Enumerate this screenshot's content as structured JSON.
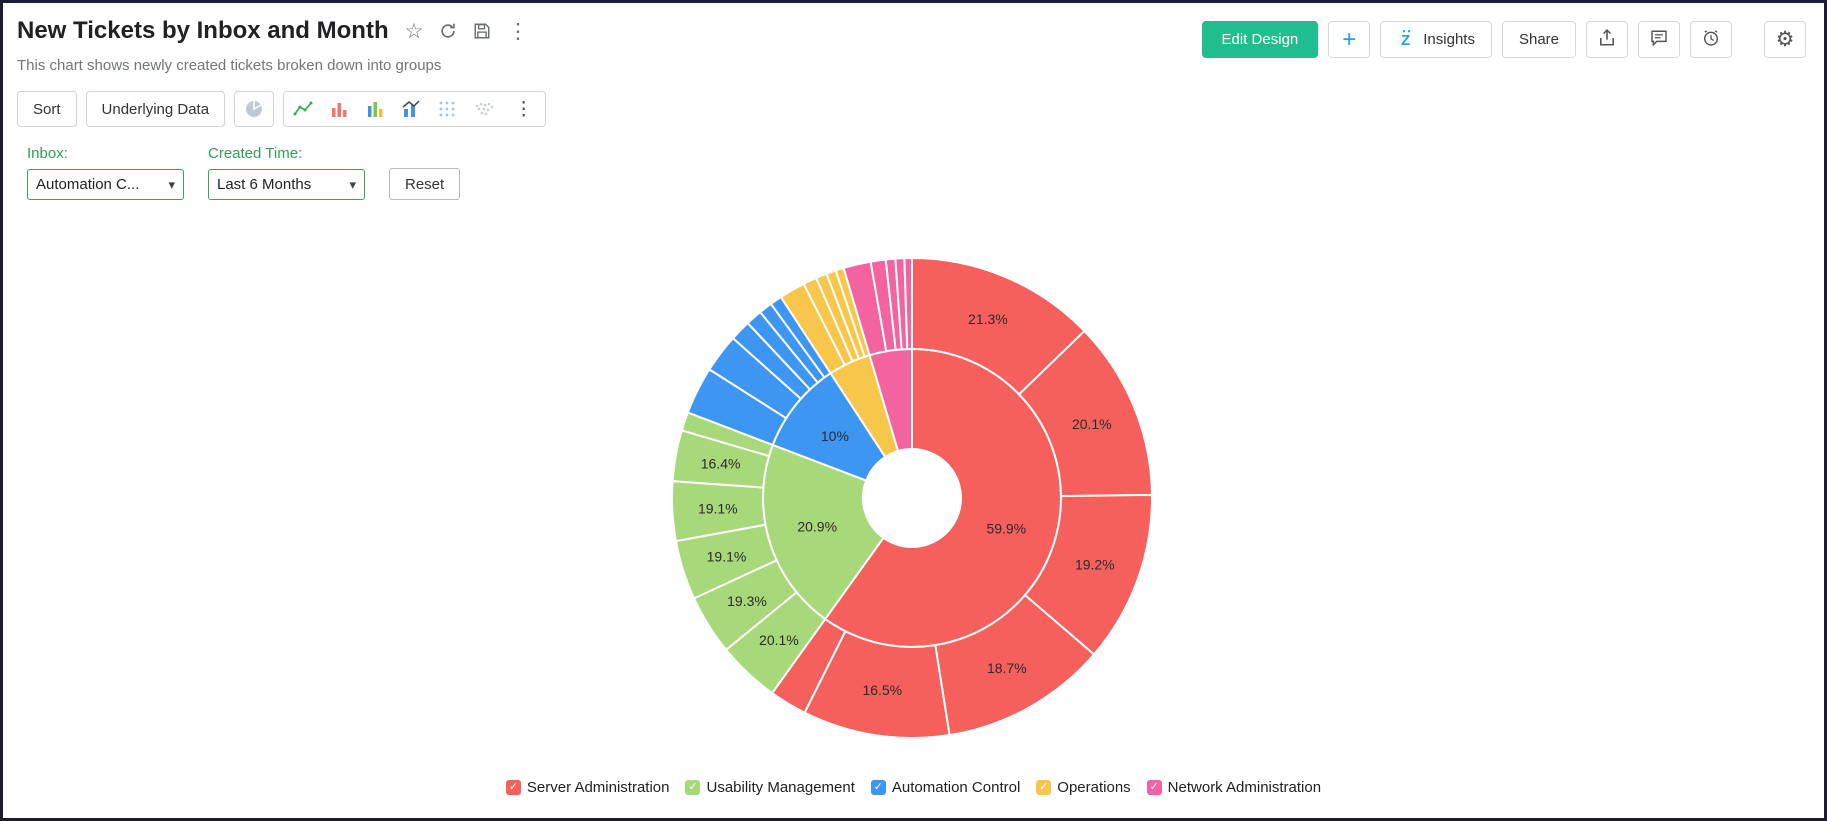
{
  "frame": {
    "border_color": "#1a1d35"
  },
  "header": {
    "title": "New Tickets by Inbox and Month",
    "subtitle": "This chart shows newly created tickets broken down into groups"
  },
  "actions": {
    "edit_design": "Edit Design",
    "add": "+",
    "insights": "Insights",
    "share": "Share"
  },
  "icons": {
    "star": "☆",
    "more_vertical": "⋮",
    "toolbar_more": "⋮",
    "gear": "⚙",
    "caret_down": "▾",
    "check": "✓"
  },
  "toolbar": {
    "sort": "Sort",
    "underlying_data": "Underlying Data"
  },
  "filters": {
    "inbox": {
      "label": "Inbox:",
      "value": "Automation C..."
    },
    "created_time": {
      "label": "Created Time:",
      "value": "Last 6 Months"
    },
    "reset": "Reset"
  },
  "chart_data": {
    "type": "pie",
    "subtype": "sunburst_donut_two_rings",
    "title": "New Tickets by Inbox and Month",
    "legend_position": "bottom",
    "children_values_are": "percent_of_parent",
    "series": [
      {
        "name": "Server Administration",
        "color": "#F5605C",
        "value": 59.9,
        "label": "59.9%",
        "children": [
          {
            "value": 21.3,
            "label": "21.3%"
          },
          {
            "value": 20.1,
            "label": "20.1%"
          },
          {
            "value": 19.2,
            "label": "19.2%"
          },
          {
            "value": 18.7,
            "label": "18.7%"
          },
          {
            "value": 16.5,
            "label": "16.5%"
          },
          {
            "value": 4.2,
            "label": ""
          }
        ]
      },
      {
        "name": "Usability Management",
        "color": "#A7D87A",
        "value": 20.9,
        "label": "20.9%",
        "children": [
          {
            "value": 20.1,
            "label": "20.1%"
          },
          {
            "value": 19.3,
            "label": "19.3%"
          },
          {
            "value": 19.1,
            "label": "19.1%"
          },
          {
            "value": 19.1,
            "label": "19.1%"
          },
          {
            "value": 16.4,
            "label": "16.4%"
          },
          {
            "value": 6.0,
            "label": ""
          }
        ]
      },
      {
        "name": "Automation Control",
        "color": "#3D96F2",
        "value": 10.0,
        "label": "10%",
        "children": [
          {
            "value": 32,
            "label": ""
          },
          {
            "value": 26,
            "label": ""
          },
          {
            "value": 14,
            "label": ""
          },
          {
            "value": 11,
            "label": ""
          },
          {
            "value": 9,
            "label": ""
          },
          {
            "value": 8,
            "label": ""
          }
        ]
      },
      {
        "name": "Operations",
        "color": "#F7C64B",
        "value": 4.6,
        "label": "",
        "children": [
          {
            "value": 38,
            "label": ""
          },
          {
            "value": 20,
            "label": ""
          },
          {
            "value": 16,
            "label": ""
          },
          {
            "value": 14,
            "label": ""
          },
          {
            "value": 12,
            "label": ""
          }
        ]
      },
      {
        "name": "Network Administration",
        "color": "#F2639F",
        "value": 4.6,
        "label": "",
        "children": [
          {
            "value": 40,
            "label": ""
          },
          {
            "value": 22,
            "label": ""
          },
          {
            "value": 14,
            "label": ""
          },
          {
            "value": 13,
            "label": ""
          },
          {
            "value": 11,
            "label": ""
          }
        ]
      }
    ]
  }
}
